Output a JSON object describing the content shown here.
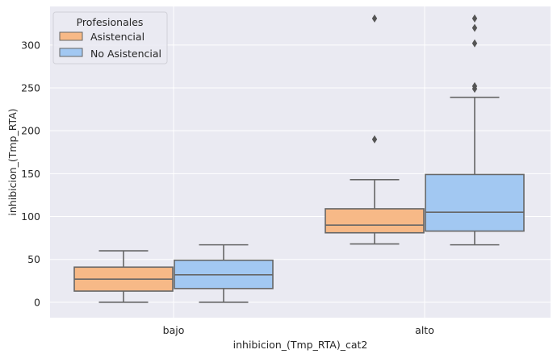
{
  "chart_data": {
    "type": "box",
    "xlabel": "inhibicion_(Tmp_RTA)_cat2",
    "ylabel": "inhibicion_(Tmp_RTA)",
    "categories": [
      "bajo",
      "alto"
    ],
    "ylim": [
      -18,
      345
    ],
    "yticks": [
      0,
      50,
      100,
      150,
      200,
      250,
      300
    ],
    "grid": true,
    "legend": {
      "title": "Profesionales",
      "placement": "top-left",
      "entries": [
        "Asistencial",
        "No Asistencial"
      ]
    },
    "series": [
      {
        "name": "Asistencial",
        "color": "#f7b987",
        "boxes": [
          {
            "category": "bajo",
            "min": 0,
            "q1": 13,
            "median": 27,
            "q3": 41,
            "max": 60,
            "outliers": []
          },
          {
            "category": "alto",
            "min": 68,
            "q1": 81,
            "median": 90,
            "q3": 109,
            "max": 143,
            "outliers": [
              190,
              331
            ]
          }
        ]
      },
      {
        "name": "No Asistencial",
        "color": "#a2c8f2",
        "boxes": [
          {
            "category": "bajo",
            "min": 0,
            "q1": 16,
            "median": 32,
            "q3": 49,
            "max": 67,
            "outliers": []
          },
          {
            "category": "alto",
            "min": 67,
            "q1": 83,
            "median": 105,
            "q3": 149,
            "max": 239,
            "outliers": [
              249,
              252,
              302,
              320,
              331
            ]
          }
        ]
      }
    ]
  }
}
